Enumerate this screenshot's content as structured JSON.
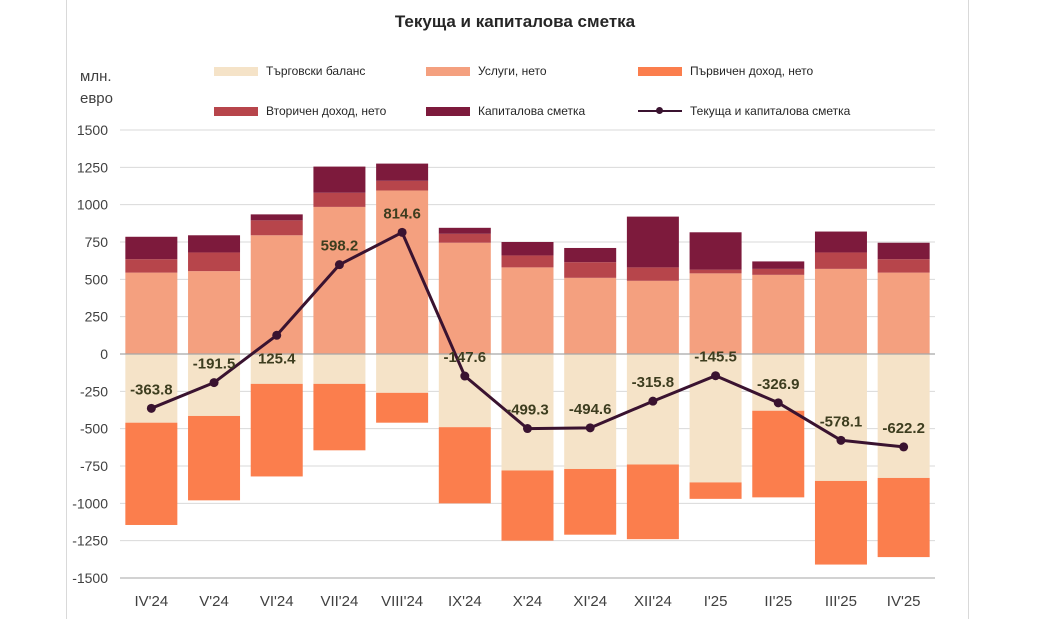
{
  "chart_data": {
    "type": "bar",
    "title": "Текуща и капиталова сметка",
    "ylabel": [
      "млн.",
      "евро"
    ],
    "ylim": [
      -1500,
      1500
    ],
    "yticks": [
      1500,
      1250,
      1000,
      750,
      500,
      250,
      0,
      -250,
      -500,
      -750,
      -1000,
      -1250,
      -1500
    ],
    "categories": [
      "IV'24",
      "V'24",
      "VI'24",
      "VII'24",
      "VIII'24",
      "IX'24",
      "X'24",
      "XI'24",
      "XII'24",
      "I'25",
      "II'25",
      "III'25",
      "IV'25"
    ],
    "series": [
      {
        "name": "Търговски баланс",
        "color": "#f5e3c8",
        "values": [
          -460,
          -415,
          -200,
          -200,
          -260,
          -490,
          -780,
          -770,
          -740,
          -860,
          -380,
          -850,
          -830
        ]
      },
      {
        "name": "Услуги, нето",
        "color": "#f4a07f",
        "values": [
          545,
          555,
          795,
          985,
          1095,
          745,
          580,
          510,
          490,
          540,
          530,
          570,
          545
        ]
      },
      {
        "name": "Първичен доход, нето",
        "color": "#fb7e4d",
        "values": [
          -685,
          -565,
          -620,
          -445,
          -200,
          -510,
          -470,
          -440,
          -500,
          -110,
          -580,
          -560,
          -530
        ]
      },
      {
        "name": "Вторичен доход, нето",
        "color": "#b7454b",
        "values": [
          90,
          125,
          100,
          95,
          65,
          60,
          80,
          105,
          90,
          25,
          40,
          110,
          90
        ]
      },
      {
        "name": "Капиталова сметка",
        "color": "#7d1a3c",
        "values": [
          150,
          115,
          40,
          175,
          115,
          40,
          90,
          95,
          340,
          250,
          50,
          140,
          110
        ]
      }
    ],
    "line": {
      "name": "Текуща и капиталова сметка",
      "color": "#3a1330",
      "values": [
        -363.8,
        -191.5,
        125.4,
        598.2,
        814.6,
        -147.6,
        -499.3,
        -494.6,
        -315.8,
        -145.5,
        -326.9,
        -578.1,
        -622.2
      ],
      "labels": [
        "-363.8",
        "-191.5",
        "125.4",
        "598.2",
        "814.6",
        "-147.6",
        "-499.3",
        "-494.6",
        "-315.8",
        "-145.5",
        "-326.9",
        "-578.1",
        "-622.2"
      ]
    },
    "grid": true,
    "legend": "top"
  }
}
